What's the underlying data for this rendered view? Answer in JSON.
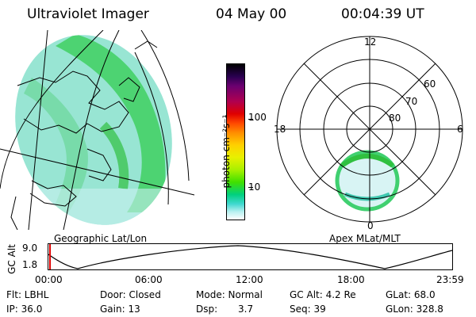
{
  "header": {
    "instrument": "Ultraviolet Imager",
    "date": "04 May 00",
    "time": "00:04:39 UT"
  },
  "panels": {
    "left_label": "Geographic Lat/Lon",
    "right_label": "Apex MLat/MLT"
  },
  "colorbar": {
    "unit_label": "photon cm⁻²s⁻¹",
    "tick_100": "100",
    "tick_10": "10",
    "colors": [
      "#000000",
      "#3a0060",
      "#7a0080",
      "#c00040",
      "#e00000",
      "#ff5000",
      "#ff9000",
      "#ffd000",
      "#e8f000",
      "#a0f000",
      "#40e000",
      "#00d060",
      "#00d0c0",
      "#a0e8f0",
      "#ffffff"
    ]
  },
  "polar": {
    "mlt_12": "12",
    "mlt_18": "18",
    "mlt_6": "6",
    "mlt_0": "0",
    "lat_60": "60",
    "lat_70": "70",
    "lat_80": "80"
  },
  "altitude_plot": {
    "axis_title": "GC Alt",
    "y_max": "9.0",
    "y_min": "1.8",
    "x_ticks": [
      "00:00",
      "06:00",
      "12:00",
      "18:00",
      "23:59"
    ]
  },
  "info": {
    "flt": "Flt: LBHL",
    "ip": "IP: 36.0",
    "door": "Door: Closed",
    "gain": "Gain: 13",
    "mode": "Mode: Normal",
    "dsp": "Dsp:",
    "dsp_val": "3.7",
    "gc_alt": "GC Alt: 4.2 Re",
    "seq": "Seq: 39",
    "glat": "GLat: 68.0",
    "glon": "GLon: 328.8"
  }
}
